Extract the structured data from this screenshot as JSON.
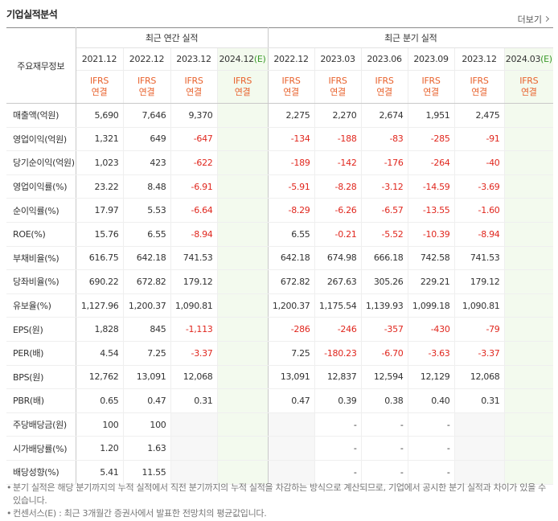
{
  "header": {
    "title": "기업실적분석",
    "more": "더보기"
  },
  "table": {
    "corner": "주요재무정보",
    "groups": [
      {
        "label": "최근 연간 실적",
        "span": 4
      },
      {
        "label": "최근 분기 실적",
        "span": 6
      }
    ],
    "columns": [
      {
        "period": "2021.12",
        "standard": "IFRS",
        "basis": "연결"
      },
      {
        "period": "2022.12",
        "standard": "IFRS",
        "basis": "연결"
      },
      {
        "period": "2023.12",
        "standard": "IFRS",
        "basis": "연결"
      },
      {
        "period": "2024.12",
        "suffix": "(E)",
        "standard": "IFRS",
        "basis": "연결"
      },
      {
        "period": "2022.12",
        "standard": "IFRS",
        "basis": "연결"
      },
      {
        "period": "2023.03",
        "standard": "IFRS",
        "basis": "연결"
      },
      {
        "period": "2023.06",
        "standard": "IFRS",
        "basis": "연결"
      },
      {
        "period": "2023.09",
        "standard": "IFRS",
        "basis": "연결"
      },
      {
        "period": "2023.12",
        "standard": "IFRS",
        "basis": "연결"
      },
      {
        "period": "2024.03",
        "suffix": "(E)",
        "standard": "IFRS",
        "basis": "연결"
      }
    ],
    "row_groups": [
      {
        "rows": [
          {
            "label": "매출액(억원)",
            "values": [
              "5,690",
              "7,646",
              "9,370",
              null,
              "2,275",
              "2,270",
              "2,674",
              "1,951",
              "2,475",
              null
            ]
          },
          {
            "label": "영업이익(억원)",
            "values": [
              "1,321",
              "649",
              "-647",
              null,
              "-134",
              "-188",
              "-83",
              "-285",
              "-91",
              null
            ]
          },
          {
            "label": "당기순이익(억원)",
            "values": [
              "1,023",
              "423",
              "-622",
              null,
              "-189",
              "-142",
              "-176",
              "-264",
              "-40",
              null
            ]
          }
        ]
      },
      {
        "rows": [
          {
            "label": "영업이익률(%)",
            "values": [
              "23.22",
              "8.48",
              "-6.91",
              null,
              "-5.91",
              "-8.28",
              "-3.12",
              "-14.59",
              "-3.69",
              null
            ]
          },
          {
            "label": "순이익률(%)",
            "values": [
              "17.97",
              "5.53",
              "-6.64",
              null,
              "-8.29",
              "-6.26",
              "-6.57",
              "-13.55",
              "-1.60",
              null
            ]
          },
          {
            "label": "ROE(%)",
            "values": [
              "15.76",
              "6.55",
              "-8.94",
              null,
              "6.55",
              "-0.21",
              "-5.52",
              "-10.39",
              "-8.94",
              null
            ]
          }
        ]
      },
      {
        "rows": [
          {
            "label": "부채비율(%)",
            "values": [
              "616.75",
              "642.18",
              "741.53",
              null,
              "642.18",
              "674.98",
              "666.18",
              "742.58",
              "741.53",
              null
            ]
          },
          {
            "label": "당좌비율(%)",
            "values": [
              "690.22",
              "672.82",
              "179.12",
              null,
              "672.82",
              "267.63",
              "305.26",
              "229.21",
              "179.12",
              null
            ]
          },
          {
            "label": "유보율(%)",
            "values": [
              "1,127.96",
              "1,200.37",
              "1,090.81",
              null,
              "1,200.37",
              "1,175.54",
              "1,139.93",
              "1,099.18",
              "1,090.81",
              null
            ]
          }
        ]
      },
      {
        "rows": [
          {
            "label": "EPS(원)",
            "values": [
              "1,828",
              "845",
              "-1,113",
              null,
              "-286",
              "-246",
              "-357",
              "-430",
              "-79",
              null
            ]
          },
          {
            "label": "PER(배)",
            "values": [
              "4.54",
              "7.25",
              "-3.37",
              null,
              "7.25",
              "-180.23",
              "-6.70",
              "-3.63",
              "-3.37",
              null
            ]
          },
          {
            "label": "BPS(원)",
            "values": [
              "12,762",
              "13,091",
              "12,068",
              null,
              "13,091",
              "12,837",
              "12,594",
              "12,129",
              "12,068",
              null
            ]
          },
          {
            "label": "PBR(배)",
            "values": [
              "0.65",
              "0.47",
              "0.31",
              null,
              "0.47",
              "0.39",
              "0.38",
              "0.40",
              "0.31",
              null
            ]
          }
        ]
      },
      {
        "rows": [
          {
            "label": "주당배당금(원)",
            "values": [
              "100",
              "100",
              null,
              null,
              null,
              "-",
              "-",
              "-",
              null,
              null
            ]
          },
          {
            "label": "시가배당률(%)",
            "values": [
              "1.20",
              "1.63",
              null,
              null,
              null,
              "-",
              "-",
              "-",
              null,
              null
            ]
          },
          {
            "label": "배당성향(%)",
            "values": [
              "5.41",
              "11.55",
              null,
              null,
              null,
              "-",
              "-",
              "-",
              null,
              null
            ]
          }
        ]
      }
    ]
  },
  "notes": [
    "분기 실적은 해당 분기까지의 누적 실적에서 직전 분기까지의 누적 실적을 차감하는 방식으로 계산되므로, 기업에서 공시한 분기 실적과 차이가 있을 수 있습니다.",
    "컨센서스(E) : 최근 3개월간 증권사에서 발표한 전망치의 평균값입니다."
  ]
}
